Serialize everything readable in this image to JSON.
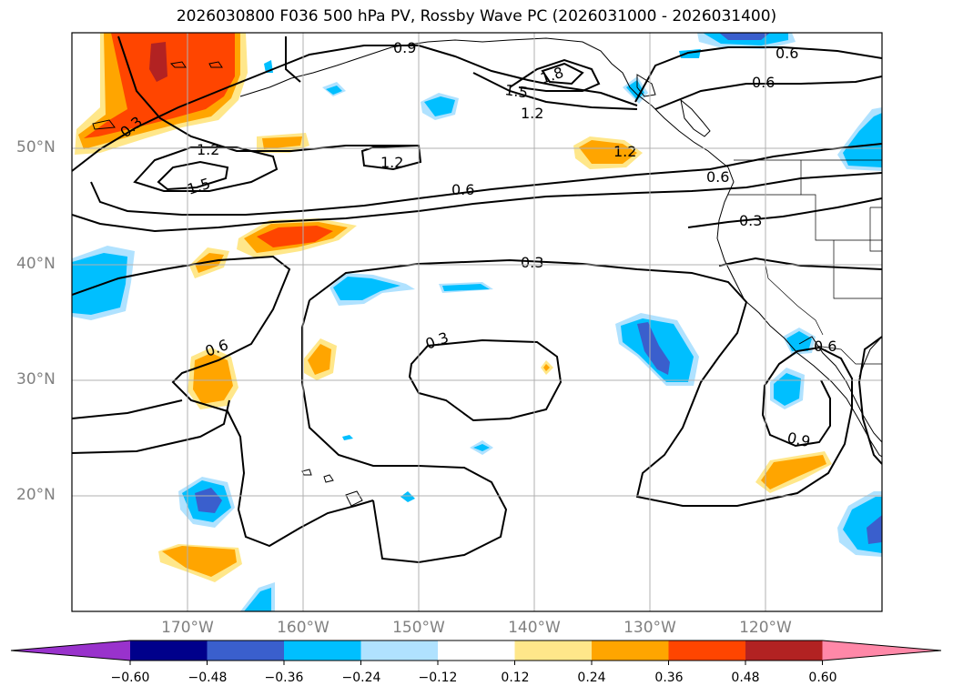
{
  "title": "2026030800 F036 500 hPa PV, Rossby Wave PC (2026031000 - 2026031400)",
  "map": {
    "lat_labels": [
      "50°N",
      "40°N",
      "30°N",
      "20°N"
    ],
    "lon_labels": [
      "170°W",
      "160°W",
      "150°W",
      "140°W",
      "130°W",
      "120°W"
    ],
    "contour_labels": [
      "0.9",
      "1.8",
      "1.5",
      "1.2",
      "0.6",
      "0.6",
      "0.3",
      "1.2",
      "1.2",
      "1.5",
      "1.2",
      "0.6",
      "0.6",
      "0.3",
      "0.3",
      "0.6",
      "0.3",
      "0.6",
      "0.9"
    ]
  },
  "colorbar": {
    "ticks": [
      "−0.60",
      "−0.48",
      "−0.36",
      "−0.24",
      "−0.12",
      "0.12",
      "0.24",
      "0.36",
      "0.48",
      "0.60"
    ],
    "colors": [
      "#9932cc",
      "#00008b",
      "#3a5fcd",
      "#00bfff",
      "#b0e2ff",
      "#ffffff",
      "#ffe78a",
      "#ffa500",
      "#ff4500",
      "#b22222",
      "#ff88a8"
    ]
  },
  "colors": {
    "grid": "#b0b0b0",
    "contour": "#000000",
    "coast": "#000000"
  }
}
